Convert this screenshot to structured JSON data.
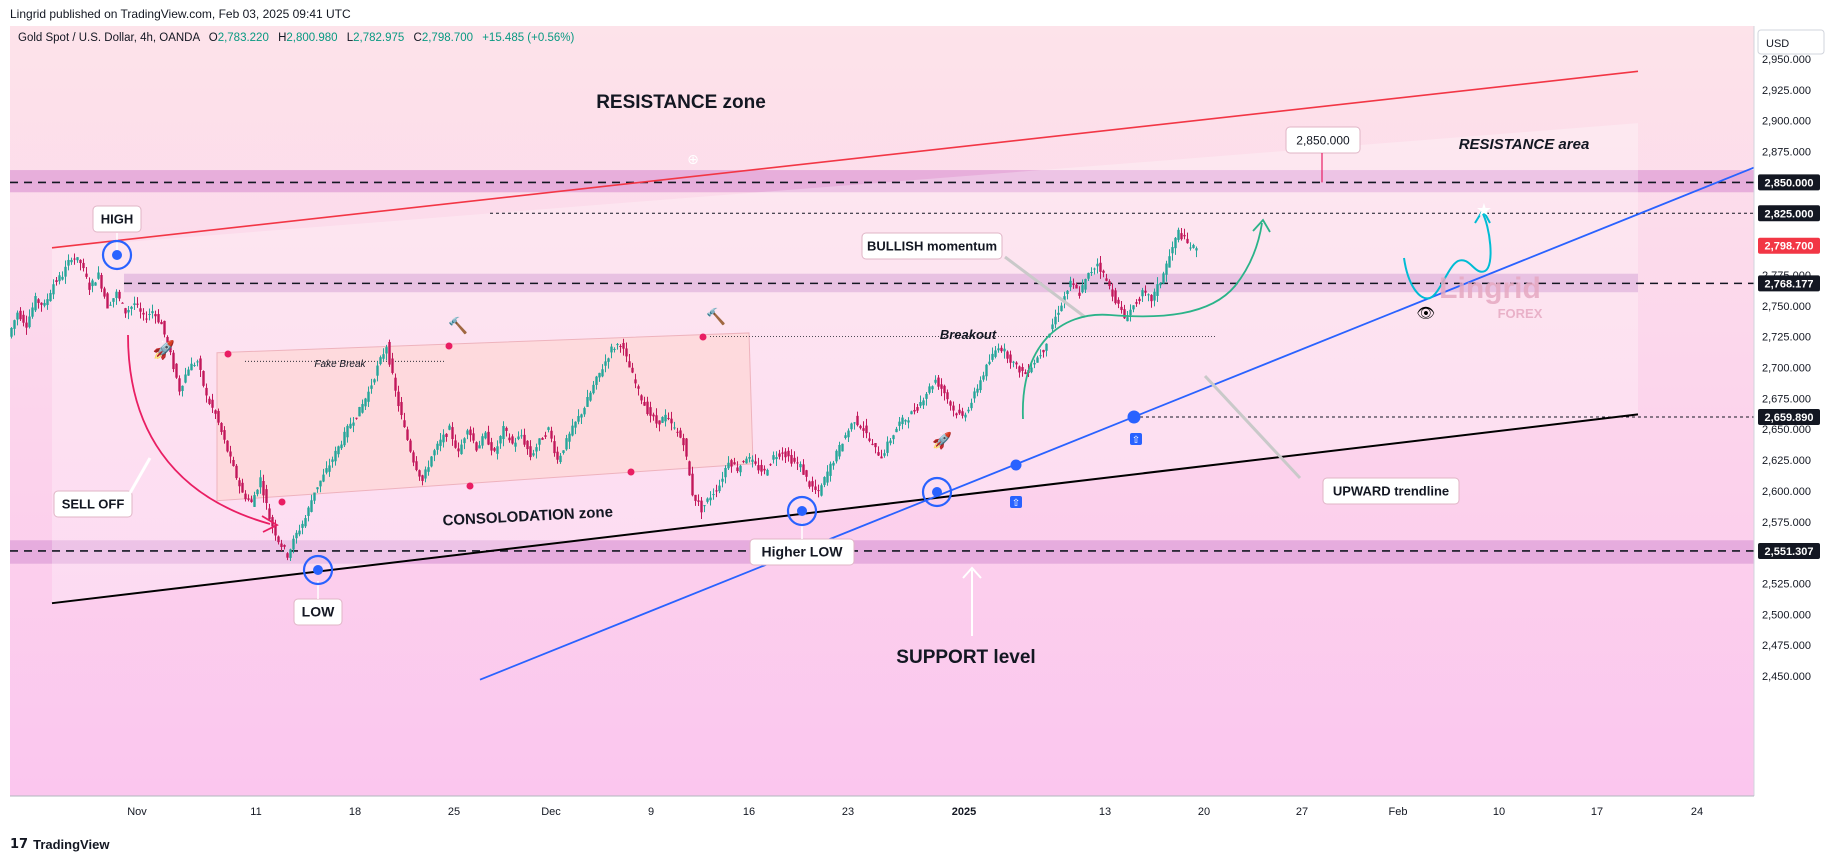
{
  "header": {
    "published": "Lingrid published on TradingView.com, Feb 03, 2025 09:41 UTC"
  },
  "footer": {
    "logo_mark": "17",
    "logo_text": "TradingView"
  },
  "chart_data": {
    "type": "candlestick",
    "symbol_line": {
      "instrument": "Gold Spot / U.S. Dollar, 4h, OANDA",
      "o_label": "O",
      "o": "2,783.220",
      "h_label": "H",
      "h": "2,800.980",
      "l_label": "L",
      "l": "2,782.975",
      "c_label": "C",
      "c": "2,798.700",
      "change": "+15.485 (+0.56%)"
    },
    "currency": "USD",
    "ylim": [
      2445,
      2965
    ],
    "y_ticks": [
      "2,950.000",
      "2,925.000",
      "2,900.000",
      "2,875.000",
      "2,850.000",
      "2,825.000",
      "2,800.000",
      "2,775.000",
      "2,750.000",
      "2,725.000",
      "2,700.000",
      "2,675.000",
      "2,650.000",
      "2,625.000",
      "2,600.000",
      "2,575.000",
      "2,550.000",
      "2,525.000",
      "2,500.000",
      "2,475.000",
      "2,450.000"
    ],
    "x_ticks": [
      "Nov",
      "11",
      "18",
      "25",
      "Dec",
      "9",
      "16",
      "23",
      "2025",
      "13",
      "20",
      "27",
      "Feb",
      "10",
      "17",
      "24"
    ],
    "price_tags": [
      {
        "label": "2,850.000",
        "value": 2850,
        "style": "dark"
      },
      {
        "label": "2,825.000",
        "value": 2825,
        "style": "dark"
      },
      {
        "label": "2,798.700",
        "value": 2798.7,
        "style": "red"
      },
      {
        "label": "2,768.177",
        "value": 2768.177,
        "style": "dark"
      },
      {
        "label": "2,659.890",
        "value": 2659.89,
        "style": "dark"
      },
      {
        "label": "2,551.307",
        "value": 2551.307,
        "style": "dark"
      }
    ],
    "price_path": [
      [
        0,
        2725
      ],
      [
        3,
        2745
      ],
      [
        6,
        2735
      ],
      [
        9,
        2755
      ],
      [
        12,
        2750
      ],
      [
        15,
        2768
      ],
      [
        18,
        2775
      ],
      [
        21,
        2790
      ],
      [
        24,
        2785
      ],
      [
        27,
        2765
      ],
      [
        30,
        2775
      ],
      [
        33,
        2750
      ],
      [
        36,
        2760
      ],
      [
        39,
        2745
      ],
      [
        42,
        2752
      ],
      [
        45,
        2740
      ],
      [
        48,
        2746
      ],
      [
        51,
        2735
      ],
      [
        54,
        2710
      ],
      [
        57,
        2682
      ],
      [
        60,
        2700
      ],
      [
        63,
        2705
      ],
      [
        66,
        2676
      ],
      [
        69,
        2662
      ],
      [
        72,
        2640
      ],
      [
        75,
        2618
      ],
      [
        78,
        2598
      ],
      [
        81,
        2590
      ],
      [
        84,
        2610
      ],
      [
        87,
        2578
      ],
      [
        90,
        2560
      ],
      [
        93,
        2548
      ],
      [
        96,
        2565
      ],
      [
        99,
        2578
      ],
      [
        102,
        2600
      ],
      [
        105,
        2612
      ],
      [
        108,
        2626
      ],
      [
        111,
        2640
      ],
      [
        114,
        2655
      ],
      [
        117,
        2665
      ],
      [
        120,
        2680
      ],
      [
        123,
        2700
      ],
      [
        126,
        2718
      ],
      [
        129,
        2680
      ],
      [
        132,
        2650
      ],
      [
        135,
        2625
      ],
      [
        138,
        2608
      ],
      [
        141,
        2628
      ],
      [
        144,
        2640
      ],
      [
        147,
        2650
      ],
      [
        150,
        2630
      ],
      [
        153,
        2652
      ],
      [
        156,
        2635
      ],
      [
        159,
        2645
      ],
      [
        162,
        2630
      ],
      [
        165,
        2650
      ],
      [
        168,
        2638
      ],
      [
        171,
        2645
      ],
      [
        174,
        2628
      ],
      [
        177,
        2640
      ],
      [
        180,
        2650
      ],
      [
        183,
        2625
      ],
      [
        186,
        2640
      ],
      [
        189,
        2655
      ],
      [
        192,
        2668
      ],
      [
        195,
        2685
      ],
      [
        198,
        2700
      ],
      [
        201,
        2715
      ],
      [
        204,
        2720
      ],
      [
        207,
        2700
      ],
      [
        210,
        2680
      ],
      [
        213,
        2665
      ],
      [
        216,
        2655
      ],
      [
        219,
        2660
      ],
      [
        222,
        2650
      ],
      [
        225,
        2640
      ],
      [
        228,
        2598
      ],
      [
        231,
        2585
      ],
      [
        234,
        2596
      ],
      [
        237,
        2605
      ],
      [
        240,
        2625
      ],
      [
        243,
        2618
      ],
      [
        246,
        2628
      ],
      [
        249,
        2620
      ],
      [
        252,
        2615
      ],
      [
        255,
        2628
      ],
      [
        258,
        2632
      ],
      [
        261,
        2625
      ],
      [
        264,
        2620
      ],
      [
        267,
        2605
      ],
      [
        270,
        2598
      ],
      [
        273,
        2615
      ],
      [
        276,
        2630
      ],
      [
        279,
        2645
      ],
      [
        282,
        2658
      ],
      [
        285,
        2650
      ],
      [
        288,
        2636
      ],
      [
        291,
        2628
      ],
      [
        294,
        2642
      ],
      [
        297,
        2655
      ],
      [
        300,
        2660
      ],
      [
        303,
        2668
      ],
      [
        306,
        2680
      ],
      [
        309,
        2690
      ],
      [
        312,
        2680
      ],
      [
        315,
        2665
      ],
      [
        318,
        2660
      ],
      [
        321,
        2672
      ],
      [
        324,
        2690
      ],
      [
        327,
        2705
      ],
      [
        330,
        2718
      ],
      [
        333,
        2710
      ],
      [
        336,
        2700
      ],
      [
        339,
        2695
      ],
      [
        342,
        2705
      ],
      [
        345,
        2715
      ],
      [
        348,
        2735
      ],
      [
        351,
        2752
      ],
      [
        354,
        2768
      ],
      [
        357,
        2760
      ],
      [
        360,
        2775
      ],
      [
        363,
        2785
      ],
      [
        366,
        2770
      ],
      [
        369,
        2755
      ],
      [
        372,
        2740
      ],
      [
        375,
        2750
      ],
      [
        378,
        2760
      ],
      [
        381,
        2755
      ],
      [
        384,
        2770
      ],
      [
        387,
        2790
      ],
      [
        390,
        2810
      ],
      [
        393,
        2800
      ],
      [
        396,
        2795
      ]
    ],
    "annotations": {
      "resistance_zone": "RESISTANCE zone",
      "resistance_area": "RESISTANCE area",
      "target": "2,850.000",
      "high": "HIGH",
      "bullish": "BULLISH momentum",
      "fake_break": "Fake Break",
      "breakout": "Breakout",
      "sell_off": "SELL OFF",
      "consolidation": "CONSOLODATION zone",
      "higher_low": "Higher LOW",
      "low": "LOW",
      "upward": "UPWARD trendline",
      "support": "SUPPORT level",
      "watermark_1": "Lingrid",
      "watermark_2": "FOREX"
    }
  }
}
